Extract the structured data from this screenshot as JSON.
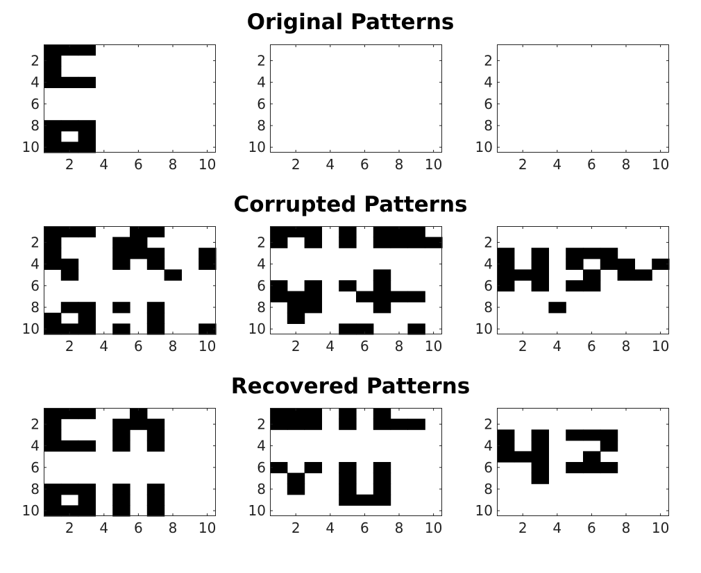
{
  "rows": [
    {
      "title": "Original Patterns",
      "panels": [
        {
          "cells": [
            [
              1,
              1,
              1,
              0,
              0,
              0,
              0,
              0,
              0,
              0
            ],
            [
              1,
              0,
              0,
              0,
              0,
              0,
              0,
              0,
              0,
              0
            ],
            [
              1,
              0,
              0,
              0,
              0,
              0,
              0,
              0,
              0,
              0
            ],
            [
              1,
              1,
              1,
              0,
              0,
              0,
              0,
              0,
              0,
              0
            ],
            [
              0,
              0,
              0,
              0,
              0,
              0,
              0,
              0,
              0,
              0
            ],
            [
              0,
              0,
              0,
              0,
              0,
              0,
              0,
              0,
              0,
              0
            ],
            [
              0,
              0,
              0,
              0,
              0,
              0,
              0,
              0,
              0,
              0
            ],
            [
              1,
              1,
              1,
              0,
              0,
              0,
              0,
              0,
              0,
              0
            ],
            [
              1,
              0,
              1,
              0,
              0,
              0,
              0,
              0,
              0,
              0
            ],
            [
              1,
              1,
              1,
              0,
              0,
              0,
              0,
              0,
              0,
              0
            ]
          ]
        },
        {
          "cells": [
            [
              0,
              0,
              0,
              0,
              0,
              0,
              0,
              0,
              0,
              0
            ],
            [
              0,
              0,
              0,
              0,
              0,
              0,
              0,
              0,
              0,
              0
            ],
            [
              0,
              0,
              0,
              0,
              0,
              0,
              0,
              0,
              0,
              0
            ],
            [
              0,
              0,
              0,
              0,
              0,
              0,
              0,
              0,
              0,
              0
            ],
            [
              0,
              0,
              0,
              0,
              0,
              0,
              0,
              0,
              0,
              0
            ],
            [
              0,
              0,
              0,
              0,
              0,
              0,
              0,
              0,
              0,
              0
            ],
            [
              0,
              0,
              0,
              0,
              0,
              0,
              0,
              0,
              0,
              0
            ],
            [
              0,
              0,
              0,
              0,
              0,
              0,
              0,
              0,
              0,
              0
            ],
            [
              0,
              0,
              0,
              0,
              0,
              0,
              0,
              0,
              0,
              0
            ],
            [
              0,
              0,
              0,
              0,
              0,
              0,
              0,
              0,
              0,
              0
            ]
          ]
        },
        {
          "cells": [
            [
              0,
              0,
              0,
              0,
              0,
              0,
              0,
              0,
              0,
              0
            ],
            [
              0,
              0,
              0,
              0,
              0,
              0,
              0,
              0,
              0,
              0
            ],
            [
              0,
              0,
              0,
              0,
              0,
              0,
              0,
              0,
              0,
              0
            ],
            [
              0,
              0,
              0,
              0,
              0,
              0,
              0,
              0,
              0,
              0
            ],
            [
              0,
              0,
              0,
              0,
              0,
              0,
              0,
              0,
              0,
              0
            ],
            [
              0,
              0,
              0,
              0,
              0,
              0,
              0,
              0,
              0,
              0
            ],
            [
              0,
              0,
              0,
              0,
              0,
              0,
              0,
              0,
              0,
              0
            ],
            [
              0,
              0,
              0,
              0,
              0,
              0,
              0,
              0,
              0,
              0
            ],
            [
              0,
              0,
              0,
              0,
              0,
              0,
              0,
              0,
              0,
              0
            ],
            [
              0,
              0,
              0,
              0,
              0,
              0,
              0,
              0,
              0,
              0
            ]
          ]
        }
      ]
    },
    {
      "title": "Corrupted Patterns",
      "panels": [
        {
          "cells": [
            [
              1,
              1,
              1,
              0,
              0,
              1,
              1,
              0,
              0,
              0
            ],
            [
              1,
              0,
              0,
              0,
              1,
              1,
              0,
              0,
              0,
              0
            ],
            [
              1,
              0,
              0,
              0,
              1,
              1,
              1,
              0,
              0,
              1
            ],
            [
              1,
              1,
              0,
              0,
              1,
              0,
              1,
              0,
              0,
              1
            ],
            [
              0,
              1,
              0,
              0,
              0,
              0,
              0,
              1,
              0,
              0
            ],
            [
              0,
              0,
              0,
              0,
              0,
              0,
              0,
              0,
              0,
              0
            ],
            [
              0,
              0,
              0,
              0,
              0,
              0,
              0,
              0,
              0,
              0
            ],
            [
              0,
              1,
              1,
              0,
              1,
              0,
              1,
              0,
              0,
              0
            ],
            [
              1,
              0,
              1,
              0,
              0,
              0,
              1,
              0,
              0,
              0
            ],
            [
              1,
              1,
              1,
              0,
              1,
              0,
              1,
              0,
              0,
              1
            ]
          ]
        },
        {
          "cells": [
            [
              1,
              1,
              1,
              0,
              1,
              0,
              1,
              1,
              1,
              0
            ],
            [
              1,
              0,
              1,
              0,
              1,
              0,
              1,
              1,
              1,
              1
            ],
            [
              0,
              0,
              0,
              0,
              0,
              0,
              0,
              0,
              0,
              0
            ],
            [
              0,
              0,
              0,
              0,
              0,
              0,
              0,
              0,
              0,
              0
            ],
            [
              0,
              0,
              0,
              0,
              0,
              0,
              1,
              0,
              0,
              0
            ],
            [
              1,
              0,
              1,
              0,
              1,
              0,
              1,
              0,
              0,
              0
            ],
            [
              1,
              1,
              1,
              0,
              0,
              1,
              1,
              1,
              1,
              0
            ],
            [
              0,
              1,
              1,
              0,
              0,
              0,
              1,
              0,
              0,
              0
            ],
            [
              0,
              1,
              0,
              0,
              0,
              0,
              0,
              0,
              0,
              0
            ],
            [
              0,
              0,
              0,
              0,
              1,
              1,
              0,
              0,
              1,
              0
            ]
          ]
        },
        {
          "cells": [
            [
              0,
              0,
              0,
              0,
              0,
              0,
              0,
              0,
              0,
              0
            ],
            [
              0,
              0,
              0,
              0,
              0,
              0,
              0,
              0,
              0,
              0
            ],
            [
              1,
              0,
              1,
              0,
              1,
              1,
              1,
              0,
              0,
              0
            ],
            [
              1,
              0,
              1,
              0,
              1,
              0,
              1,
              1,
              0,
              1
            ],
            [
              1,
              1,
              1,
              0,
              0,
              1,
              0,
              1,
              1,
              0
            ],
            [
              1,
              0,
              1,
              0,
              1,
              1,
              0,
              0,
              0,
              0
            ],
            [
              0,
              0,
              0,
              0,
              0,
              0,
              0,
              0,
              0,
              0
            ],
            [
              0,
              0,
              0,
              1,
              0,
              0,
              0,
              0,
              0,
              0
            ],
            [
              0,
              0,
              0,
              0,
              0,
              0,
              0,
              0,
              0,
              0
            ],
            [
              0,
              0,
              0,
              0,
              0,
              0,
              0,
              0,
              0,
              0
            ]
          ]
        }
      ]
    },
    {
      "title": "Recovered Patterns",
      "panels": [
        {
          "cells": [
            [
              1,
              1,
              1,
              0,
              0,
              1,
              0,
              0,
              0,
              0
            ],
            [
              1,
              0,
              0,
              0,
              1,
              1,
              1,
              0,
              0,
              0
            ],
            [
              1,
              0,
              0,
              0,
              1,
              0,
              1,
              0,
              0,
              0
            ],
            [
              1,
              1,
              1,
              0,
              1,
              0,
              1,
              0,
              0,
              0
            ],
            [
              0,
              0,
              0,
              0,
              0,
              0,
              0,
              0,
              0,
              0
            ],
            [
              0,
              0,
              0,
              0,
              0,
              0,
              0,
              0,
              0,
              0
            ],
            [
              0,
              0,
              0,
              0,
              0,
              0,
              0,
              0,
              0,
              0
            ],
            [
              1,
              1,
              1,
              0,
              1,
              0,
              1,
              0,
              0,
              0
            ],
            [
              1,
              0,
              1,
              0,
              1,
              0,
              1,
              0,
              0,
              0
            ],
            [
              1,
              1,
              1,
              0,
              1,
              0,
              1,
              0,
              0,
              0
            ]
          ]
        },
        {
          "cells": [
            [
              1,
              1,
              1,
              0,
              1,
              0,
              1,
              0,
              0,
              0
            ],
            [
              1,
              1,
              1,
              0,
              1,
              0,
              1,
              1,
              1,
              0
            ],
            [
              0,
              0,
              0,
              0,
              0,
              0,
              0,
              0,
              0,
              0
            ],
            [
              0,
              0,
              0,
              0,
              0,
              0,
              0,
              0,
              0,
              0
            ],
            [
              0,
              0,
              0,
              0,
              0,
              0,
              0,
              0,
              0,
              0
            ],
            [
              1,
              0,
              1,
              0,
              1,
              0,
              1,
              0,
              0,
              0
            ],
            [
              0,
              1,
              0,
              0,
              1,
              0,
              1,
              0,
              0,
              0
            ],
            [
              0,
              1,
              0,
              0,
              1,
              0,
              1,
              0,
              0,
              0
            ],
            [
              0,
              0,
              0,
              0,
              1,
              1,
              1,
              0,
              0,
              0
            ],
            [
              0,
              0,
              0,
              0,
              0,
              0,
              0,
              0,
              0,
              0
            ]
          ]
        },
        {
          "cells": [
            [
              0,
              0,
              0,
              0,
              0,
              0,
              0,
              0,
              0,
              0
            ],
            [
              0,
              0,
              0,
              0,
              0,
              0,
              0,
              0,
              0,
              0
            ],
            [
              1,
              0,
              1,
              0,
              1,
              1,
              1,
              0,
              0,
              0
            ],
            [
              1,
              0,
              1,
              0,
              0,
              0,
              1,
              0,
              0,
              0
            ],
            [
              1,
              1,
              1,
              0,
              0,
              1,
              0,
              0,
              0,
              0
            ],
            [
              0,
              0,
              1,
              0,
              1,
              1,
              1,
              0,
              0,
              0
            ],
            [
              0,
              0,
              1,
              0,
              0,
              0,
              0,
              0,
              0,
              0
            ],
            [
              0,
              0,
              0,
              0,
              0,
              0,
              0,
              0,
              0,
              0
            ],
            [
              0,
              0,
              0,
              0,
              0,
              0,
              0,
              0,
              0,
              0
            ],
            [
              0,
              0,
              0,
              0,
              0,
              0,
              0,
              0,
              0,
              0
            ]
          ]
        }
      ]
    }
  ],
  "axis": {
    "x_ticks": [
      "2",
      "4",
      "6",
      "8",
      "10"
    ],
    "y_ticks": [
      "2",
      "4",
      "6",
      "8",
      "10"
    ]
  },
  "colors": {
    "on": "#000000",
    "off": "#ffffff",
    "frame": "#222222"
  }
}
